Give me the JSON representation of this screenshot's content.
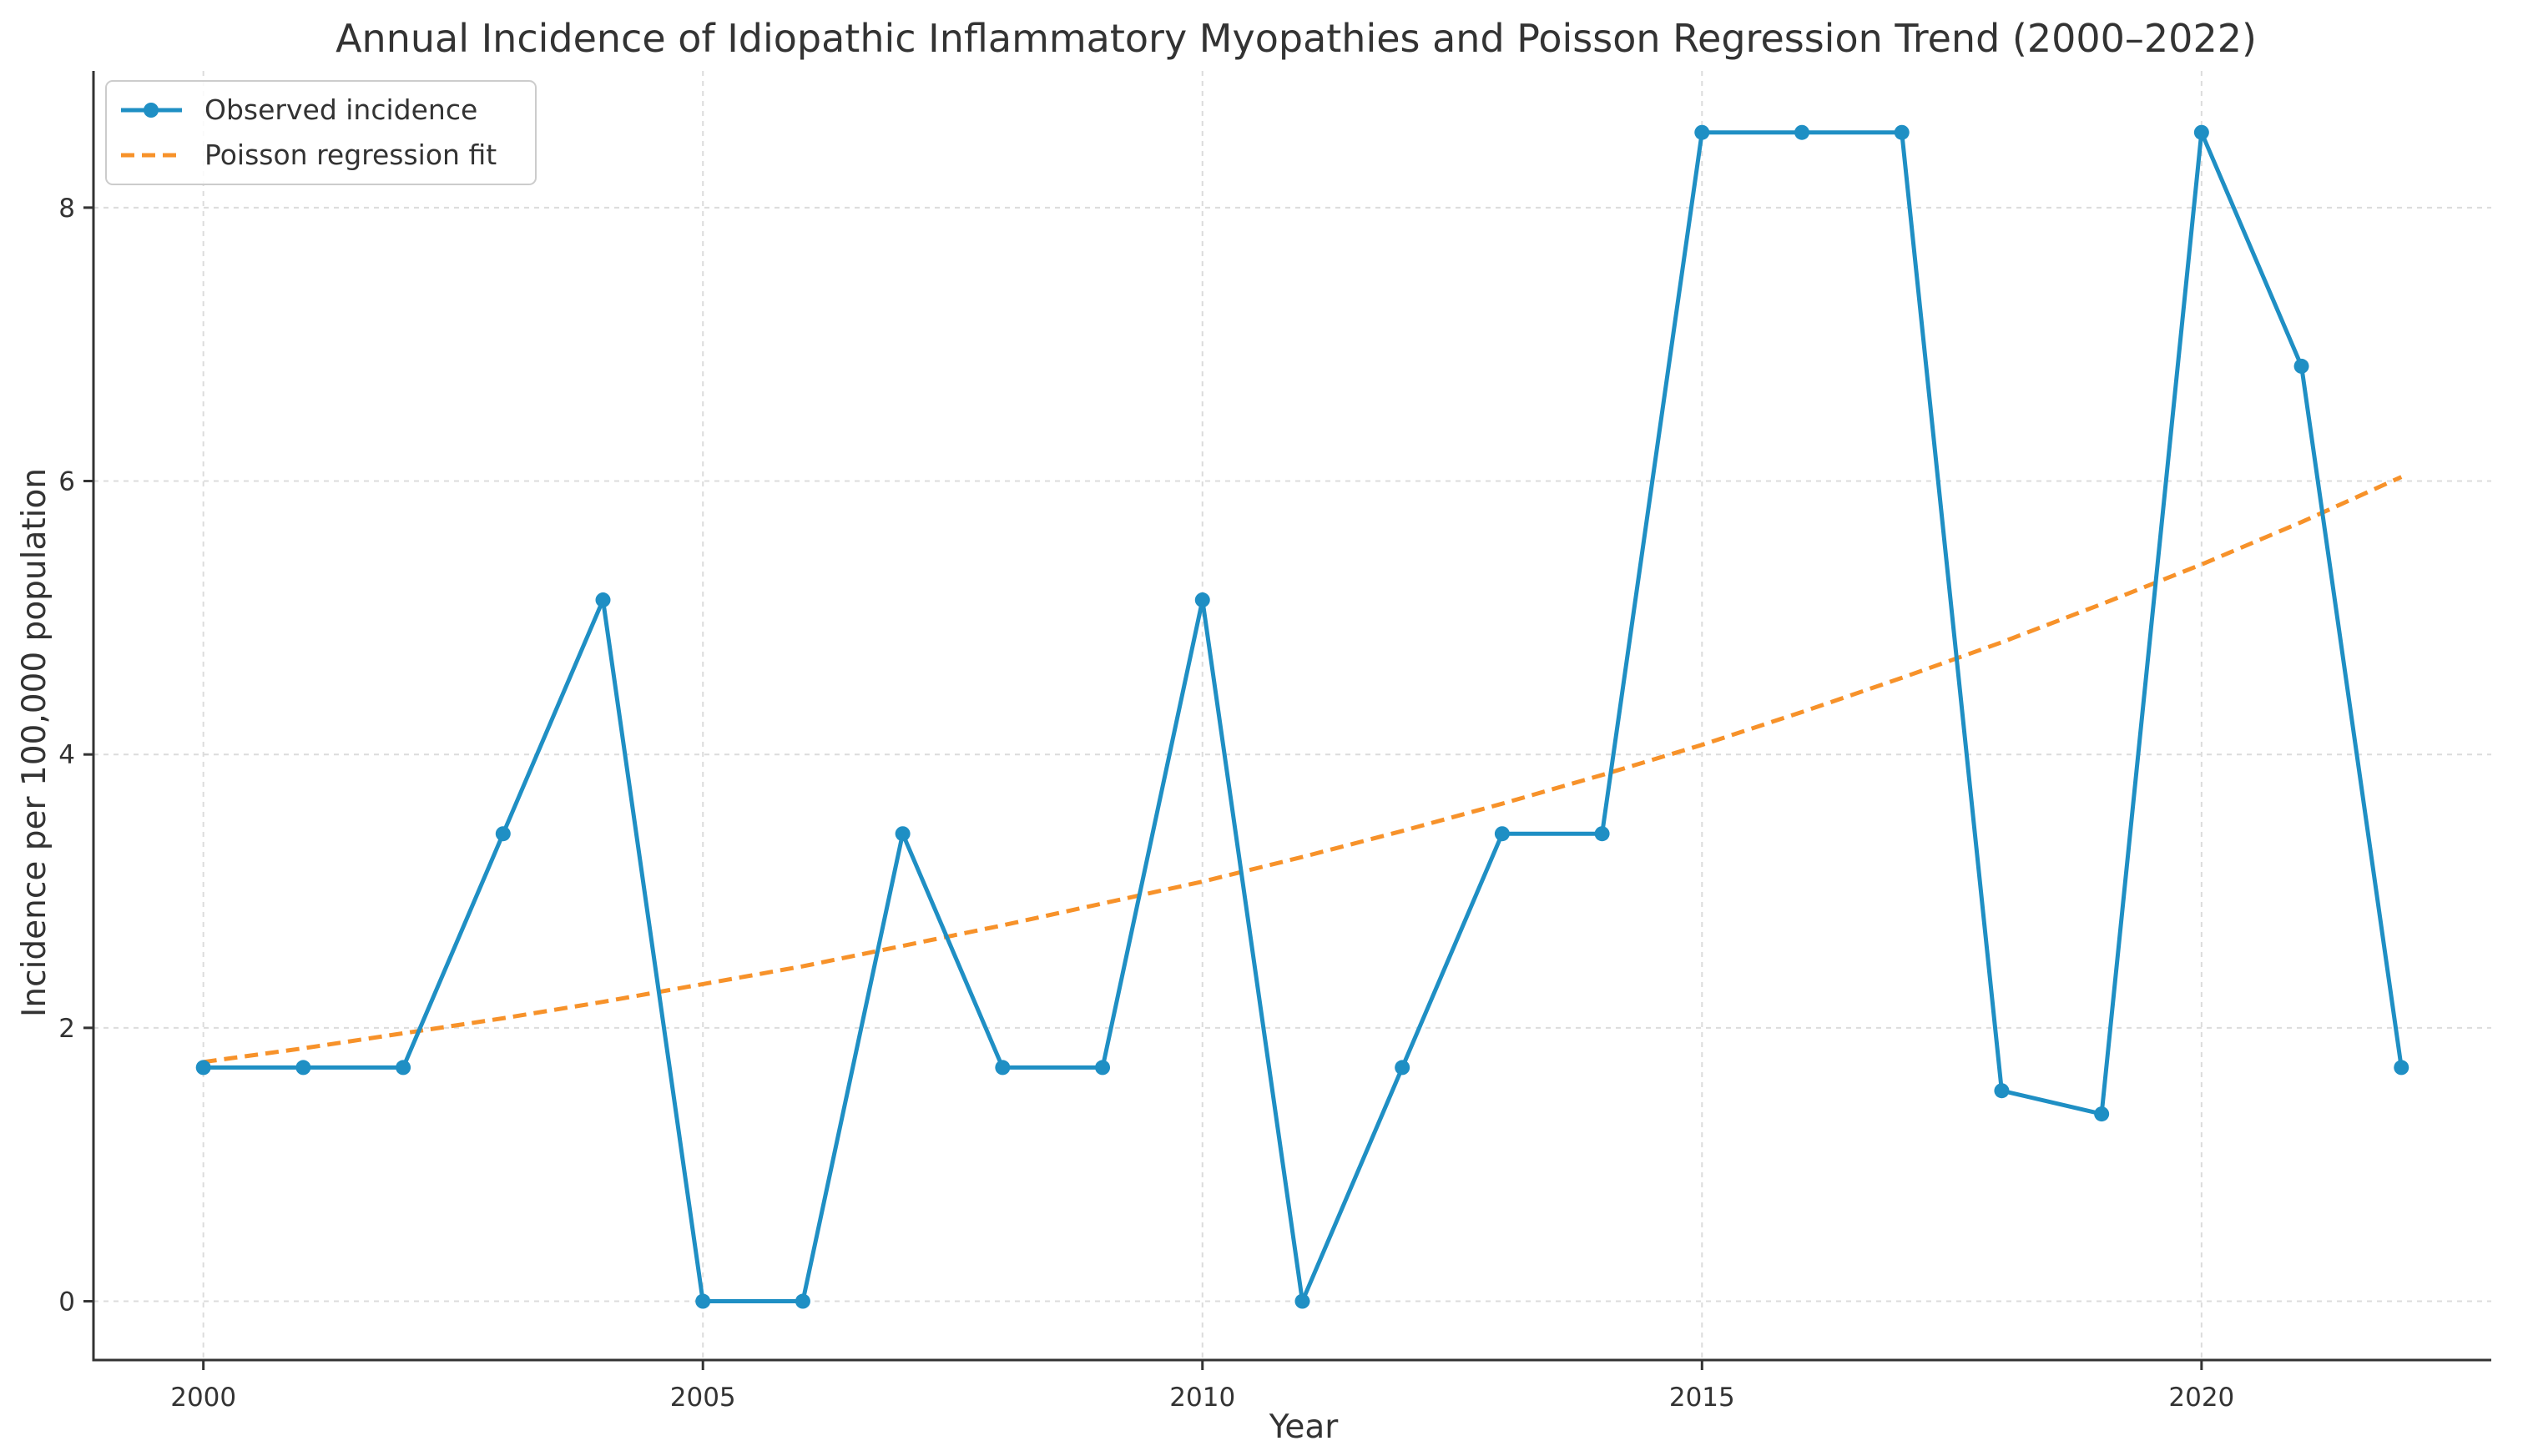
{
  "chart_data": {
    "type": "line",
    "title": "Annual Incidence of Idiopathic Inflammatory Myopathies and Poisson Regression Trend (2000–2022)",
    "xlabel": "Year",
    "ylabel": "Incidence per 100,000 population",
    "xlim": [
      1998.9,
      2022.9
    ],
    "ylim": [
      -0.43,
      9.0
    ],
    "x_ticks": [
      2000,
      2005,
      2010,
      2015,
      2020
    ],
    "y_ticks": [
      0,
      2,
      4,
      6,
      8
    ],
    "grid": true,
    "legend_position": "top-left",
    "x": [
      2000,
      2001,
      2002,
      2003,
      2004,
      2005,
      2006,
      2007,
      2008,
      2009,
      2010,
      2011,
      2012,
      2013,
      2014,
      2015,
      2016,
      2017,
      2018,
      2019,
      2020,
      2021,
      2022
    ],
    "series": [
      {
        "name": "Observed incidence",
        "style": "solid-markers",
        "color": "#1f8fc4",
        "values": [
          1.71,
          1.71,
          1.71,
          3.42,
          5.13,
          0.0,
          0.0,
          3.42,
          1.71,
          1.71,
          5.13,
          0.0,
          1.71,
          3.42,
          3.42,
          8.55,
          8.55,
          8.55,
          1.54,
          1.37,
          8.55,
          6.84,
          1.71
        ]
      },
      {
        "name": "Poisson regression fit",
        "style": "dashed",
        "color": "#f7922a",
        "values": [
          1.75,
          1.85,
          1.96,
          2.07,
          2.19,
          2.32,
          2.45,
          2.6,
          2.75,
          2.91,
          3.07,
          3.25,
          3.44,
          3.64,
          3.85,
          4.07,
          4.31,
          4.56,
          4.82,
          5.1,
          5.39,
          5.7,
          6.03
        ]
      }
    ]
  }
}
